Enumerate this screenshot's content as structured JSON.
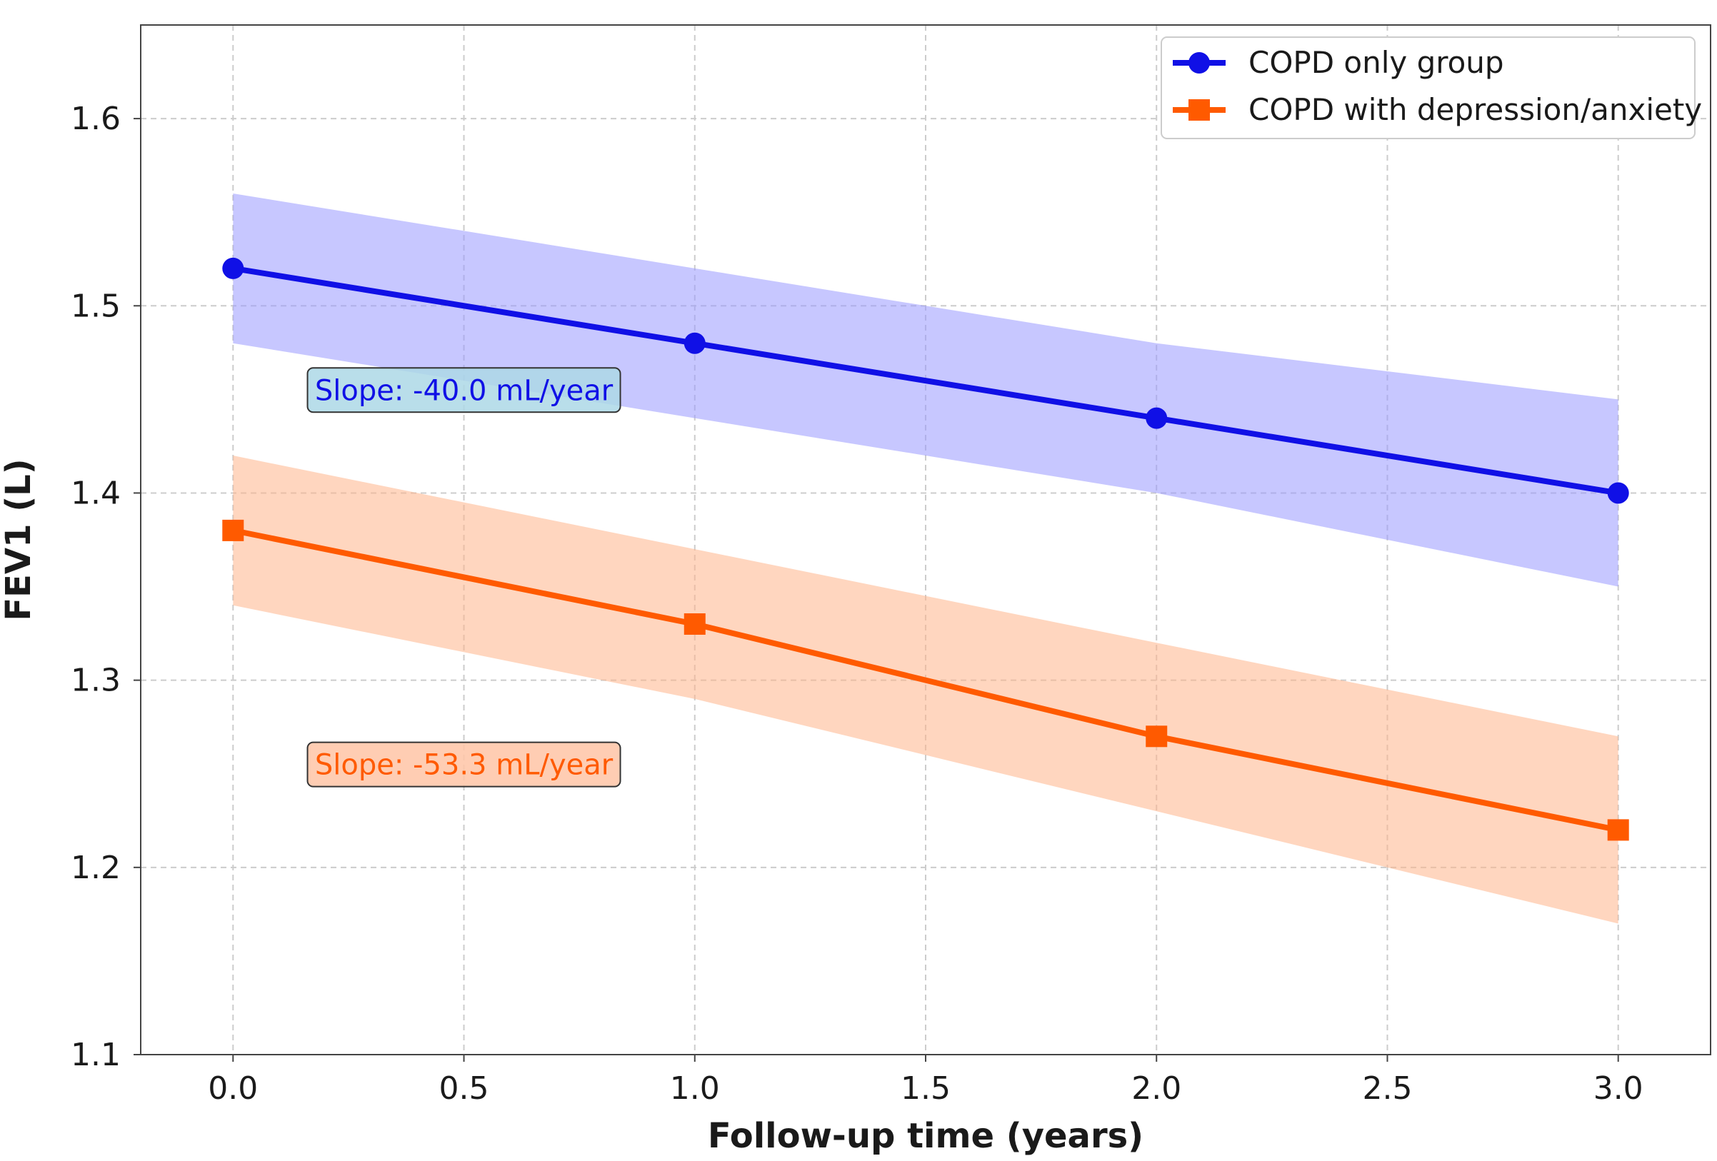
{
  "chart_data": {
    "type": "line",
    "xlabel": "Follow-up time (years)",
    "ylabel": "FEV1 (L)",
    "xlim": [
      -0.2,
      3.2
    ],
    "ylim": [
      1.1,
      1.65
    ],
    "x_ticks": [
      "0.0",
      "0.5",
      "1.0",
      "1.5",
      "2.0",
      "2.5",
      "3.0"
    ],
    "y_ticks": [
      "1.1",
      "1.2",
      "1.3",
      "1.4",
      "1.5",
      "1.6"
    ],
    "grid": true,
    "legend_position": "top-right",
    "series": [
      {
        "name": "COPD only group",
        "color": "#1010e6",
        "band_color": "#9999ff",
        "marker": "circle",
        "x": [
          0,
          1,
          2,
          3
        ],
        "y": [
          1.52,
          1.48,
          1.44,
          1.4
        ],
        "ci_lower": [
          1.48,
          1.44,
          1.4,
          1.35
        ],
        "ci_upper": [
          1.56,
          1.52,
          1.48,
          1.45
        ]
      },
      {
        "name": "COPD with depression/anxiety",
        "color": "#ff5a00",
        "band_color": "#ffb58a",
        "marker": "square",
        "x": [
          0,
          1,
          2,
          3
        ],
        "y": [
          1.38,
          1.33,
          1.27,
          1.22
        ],
        "ci_lower": [
          1.34,
          1.29,
          1.23,
          1.17
        ],
        "ci_upper": [
          1.42,
          1.37,
          1.32,
          1.27
        ]
      }
    ],
    "annotations": [
      {
        "text": "Slope: -40.0 mL/year",
        "x": 0.5,
        "y": 1.455,
        "color": "#1010e6",
        "box_color": "#add8e6"
      },
      {
        "text": "Slope: -53.3 mL/year",
        "x": 0.5,
        "y": 1.255,
        "color": "#ff5a00",
        "box_color": "#ffc4a6"
      }
    ]
  }
}
